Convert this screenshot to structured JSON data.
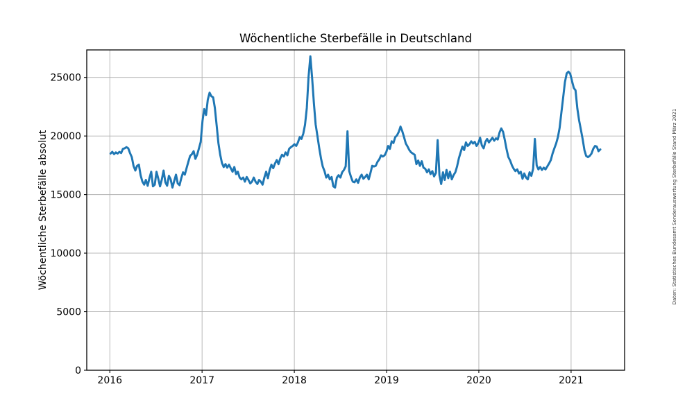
{
  "chart_data": {
    "type": "line",
    "title": "Wöchentliche Sterbefälle in Deutschland",
    "xlabel": "",
    "ylabel": "Wöchentliche Sterbefälle absolut",
    "caption_right": "Daten: Statistisches Bundesamt Sonderauswertung Sterbefälle Stand März 2021",
    "x_unit": "Kalenderwoche",
    "x_start": "2016-W01",
    "x_end": "2021-W17",
    "x_ticks": [
      2016,
      2017,
      2018,
      2019,
      2020,
      2021
    ],
    "x_tick_labels": [
      "2016",
      "2017",
      "2018",
      "2019",
      "2020",
      "2021"
    ],
    "y_ticks": [
      0,
      5000,
      10000,
      15000,
      20000,
      25000
    ],
    "y_tick_labels": [
      "0",
      "5000",
      "10000",
      "15000",
      "20000",
      "25000"
    ],
    "xlim_years": [
      2015.75,
      2021.58
    ],
    "ylim": [
      0,
      27350
    ],
    "grid": true,
    "grid_color": "#b0b0b0",
    "line_color": "#1f77b4",
    "line_width": 3,
    "x_start_year": 2016.008,
    "week_step_years": 0.0191649,
    "series": [
      {
        "name": "Wöchentliche Sterbefälle absolut",
        "values": [
          18500,
          18650,
          18450,
          18600,
          18500,
          18650,
          18550,
          18900,
          18950,
          19050,
          18950,
          18550,
          18200,
          17450,
          17050,
          17450,
          17550,
          16650,
          16100,
          15850,
          16250,
          15750,
          16400,
          16950,
          15700,
          15850,
          16950,
          16350,
          15700,
          16300,
          17050,
          16050,
          15750,
          16600,
          16300,
          15600,
          16150,
          16700,
          15950,
          15800,
          16400,
          16900,
          16700,
          17250,
          17800,
          18300,
          18450,
          18700,
          18050,
          18400,
          18950,
          19500,
          21300,
          22300,
          21800,
          23100,
          23700,
          23400,
          23300,
          22400,
          20900,
          19400,
          18400,
          17700,
          17350,
          17600,
          17300,
          17550,
          17250,
          16950,
          17350,
          16750,
          16950,
          16450,
          16300,
          16450,
          16100,
          16500,
          16250,
          15950,
          16100,
          16450,
          16100,
          15900,
          16250,
          16100,
          15850,
          16450,
          16950,
          16400,
          17100,
          17550,
          17250,
          17650,
          17950,
          17600,
          18100,
          18400,
          18250,
          18600,
          18350,
          18900,
          19050,
          19150,
          19300,
          19150,
          19450,
          19900,
          19750,
          20200,
          20950,
          22400,
          25050,
          26800,
          25000,
          22800,
          21000,
          20000,
          19000,
          18100,
          17400,
          17000,
          16450,
          16700,
          16300,
          16500,
          15700,
          15600,
          16450,
          16650,
          16450,
          16900,
          17100,
          17400,
          20400,
          17000,
          16500,
          16100,
          16050,
          16300,
          16000,
          16450,
          16700,
          16350,
          16500,
          16700,
          16300,
          16850,
          17450,
          17400,
          17450,
          17800,
          18000,
          18350,
          18250,
          18350,
          18650,
          19150,
          18900,
          19550,
          19400,
          19900,
          20050,
          20350,
          20800,
          20400,
          19900,
          19350,
          19100,
          18800,
          18600,
          18500,
          18400,
          17600,
          17900,
          17450,
          17850,
          17300,
          17200,
          16900,
          17150,
          16750,
          17000,
          16550,
          16850,
          19650,
          16650,
          15900,
          16900,
          16250,
          17100,
          16400,
          16950,
          16300,
          16650,
          16900,
          17400,
          18100,
          18600,
          19100,
          18800,
          19450,
          19150,
          19300,
          19550,
          19350,
          19500,
          19150,
          19400,
          19850,
          19200,
          18950,
          19500,
          19750,
          19450,
          19650,
          19850,
          19600,
          19800,
          19700,
          20300,
          20650,
          20350,
          19650,
          18850,
          18200,
          17900,
          17500,
          17200,
          17000,
          17150,
          16800,
          16950,
          16350,
          16800,
          16450,
          16300,
          16900,
          16600,
          17200,
          19750,
          17500,
          17150,
          17350,
          17100,
          17300,
          17150,
          17400,
          17650,
          17950,
          18500,
          18950,
          19350,
          19900,
          20700,
          22000,
          23300,
          24600,
          25350,
          25500,
          25300,
          24700,
          24100,
          23900,
          22350,
          21350,
          20550,
          19750,
          18800,
          18300,
          18200,
          18300,
          18500,
          18900,
          19150,
          19100,
          18700,
          18850
        ]
      }
    ]
  }
}
